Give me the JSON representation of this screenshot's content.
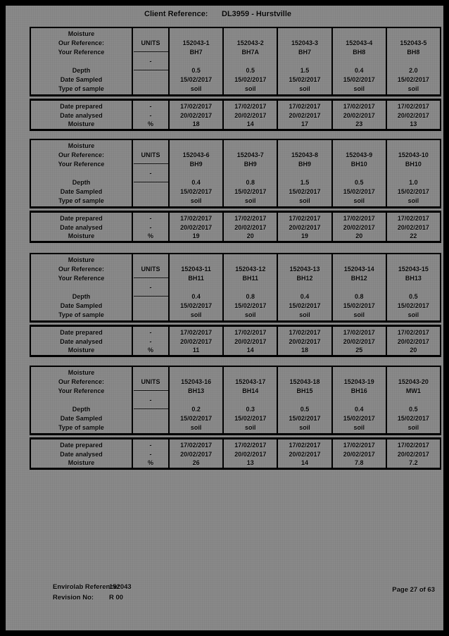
{
  "header": {
    "label": "Client Reference:",
    "value": "DL3959 - Hurstville"
  },
  "labels": {
    "title": "Moisture",
    "our_ref": "Our Reference:",
    "your_ref": "Your Reference",
    "depth": "Depth",
    "date_sampled": "Date Sampled",
    "type_of_sample": "Type of sample",
    "date_prepared": "Date prepared",
    "date_analysed": "Date analysed",
    "moisture": "Moisture"
  },
  "units": {
    "header": "UNITS",
    "dash_a": "——————",
    "hyphen": "-",
    "dash_b": "——————",
    "prepared": "-",
    "analysed": "-",
    "moisture": "%"
  },
  "tables": [
    {
      "samples": [
        {
          "id": "152043-1",
          "ref": "BH7",
          "depth": "0.5",
          "sampled": "15/02/2017",
          "type": "soil",
          "prepared": "17/02/2017",
          "analysed": "20/02/2017",
          "moisture": "18"
        },
        {
          "id": "152043-2",
          "ref": "BH7A",
          "depth": "0.5",
          "sampled": "15/02/2017",
          "type": "soil",
          "prepared": "17/02/2017",
          "analysed": "20/02/2017",
          "moisture": "14"
        },
        {
          "id": "152043-3",
          "ref": "BH7",
          "depth": "1.5",
          "sampled": "15/02/2017",
          "type": "soil",
          "prepared": "17/02/2017",
          "analysed": "20/02/2017",
          "moisture": "17"
        },
        {
          "id": "152043-4",
          "ref": "BH8",
          "depth": "0.4",
          "sampled": "15/02/2017",
          "type": "soil",
          "prepared": "17/02/2017",
          "analysed": "20/02/2017",
          "moisture": "23"
        },
        {
          "id": "152043-5",
          "ref": "BH8",
          "depth": "2.0",
          "sampled": "15/02/2017",
          "type": "soil",
          "prepared": "17/02/2017",
          "analysed": "20/02/2017",
          "moisture": "13"
        }
      ]
    },
    {
      "samples": [
        {
          "id": "152043-6",
          "ref": "BH9",
          "depth": "0.4",
          "sampled": "15/02/2017",
          "type": "soil",
          "prepared": "17/02/2017",
          "analysed": "20/02/2017",
          "moisture": "19"
        },
        {
          "id": "152043-7",
          "ref": "BH9",
          "depth": "0.8",
          "sampled": "15/02/2017",
          "type": "soil",
          "prepared": "17/02/2017",
          "analysed": "20/02/2017",
          "moisture": "20"
        },
        {
          "id": "152043-8",
          "ref": "BH9",
          "depth": "1.5",
          "sampled": "15/02/2017",
          "type": "soil",
          "prepared": "17/02/2017",
          "analysed": "20/02/2017",
          "moisture": "19"
        },
        {
          "id": "152043-9",
          "ref": "BH10",
          "depth": "0.5",
          "sampled": "15/02/2017",
          "type": "soil",
          "prepared": "17/02/2017",
          "analysed": "20/02/2017",
          "moisture": "20"
        },
        {
          "id": "152043-10",
          "ref": "BH10",
          "depth": "1.0",
          "sampled": "15/02/2017",
          "type": "soil",
          "prepared": "17/02/2017",
          "analysed": "20/02/2017",
          "moisture": "22"
        }
      ]
    },
    {
      "samples": [
        {
          "id": "152043-11",
          "ref": "BH11",
          "depth": "0.4",
          "sampled": "15/02/2017",
          "type": "soil",
          "prepared": "17/02/2017",
          "analysed": "20/02/2017",
          "moisture": "11"
        },
        {
          "id": "152043-12",
          "ref": "BH11",
          "depth": "0.8",
          "sampled": "15/02/2017",
          "type": "soil",
          "prepared": "17/02/2017",
          "analysed": "20/02/2017",
          "moisture": "14"
        },
        {
          "id": "152043-13",
          "ref": "BH12",
          "depth": "0.4",
          "sampled": "15/02/2017",
          "type": "soil",
          "prepared": "17/02/2017",
          "analysed": "20/02/2017",
          "moisture": "18"
        },
        {
          "id": "152043-14",
          "ref": "BH12",
          "depth": "0.8",
          "sampled": "15/02/2017",
          "type": "soil",
          "prepared": "17/02/2017",
          "analysed": "20/02/2017",
          "moisture": "25"
        },
        {
          "id": "152043-15",
          "ref": "BH13",
          "depth": "0.5",
          "sampled": "15/02/2017",
          "type": "soil",
          "prepared": "17/02/2017",
          "analysed": "20/02/2017",
          "moisture": "20"
        }
      ]
    },
    {
      "samples": [
        {
          "id": "152043-16",
          "ref": "BH13",
          "depth": "0.2",
          "sampled": "15/02/2017",
          "type": "soil",
          "prepared": "17/02/2017",
          "analysed": "20/02/2017",
          "moisture": "26"
        },
        {
          "id": "152043-17",
          "ref": "BH14",
          "depth": "0.3",
          "sampled": "15/02/2017",
          "type": "soil",
          "prepared": "17/02/2017",
          "analysed": "20/02/2017",
          "moisture": "13"
        },
        {
          "id": "152043-18",
          "ref": "BH15",
          "depth": "0.5",
          "sampled": "15/02/2017",
          "type": "soil",
          "prepared": "17/02/2017",
          "analysed": "20/02/2017",
          "moisture": "14"
        },
        {
          "id": "152043-19",
          "ref": "BH16",
          "depth": "0.4",
          "sampled": "15/02/2017",
          "type": "soil",
          "prepared": "17/02/2017",
          "analysed": "20/02/2017",
          "moisture": "7.8"
        },
        {
          "id": "152043-20",
          "ref": "MW1",
          "depth": "0.5",
          "sampled": "15/02/2017",
          "type": "soil",
          "prepared": "17/02/2017",
          "analysed": "20/02/2017",
          "moisture": "7.2"
        }
      ]
    }
  ],
  "footer": {
    "ref_label": "Envirolab Reference:",
    "ref_value": "152043",
    "rev_label": "Revision No:",
    "rev_value": "R 00",
    "page_label": "Page 27 of 63"
  }
}
